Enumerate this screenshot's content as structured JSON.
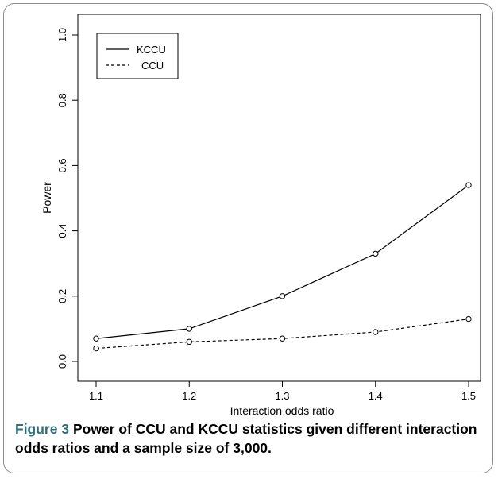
{
  "chart_data": {
    "type": "line",
    "x": [
      1.1,
      1.2,
      1.3,
      1.4,
      1.5
    ],
    "series": [
      {
        "name": "KCCU",
        "values": [
          0.07,
          0.1,
          0.2,
          0.33,
          0.54
        ],
        "line_style": "solid"
      },
      {
        "name": "CCU",
        "values": [
          0.04,
          0.06,
          0.07,
          0.09,
          0.13
        ],
        "line_style": "dashed"
      }
    ],
    "xlabel": "Interaction odds ratio",
    "ylabel": "Power",
    "xlim": [
      1.1,
      1.5
    ],
    "ylim": [
      0.0,
      1.0
    ],
    "x_ticks": [
      "1.1",
      "1.2",
      "1.3",
      "1.4",
      "1.5"
    ],
    "y_ticks": [
      "0.0",
      "0.2",
      "0.4",
      "0.6",
      "0.8",
      "1.0"
    ],
    "legend_position": "top-left",
    "grid": false,
    "marker": "open-circle",
    "line_color": "#000000"
  },
  "caption": {
    "label": "Figure 3",
    "text": "Power of CCU and KCCU statistics given different interaction odds ratios and a sample size of 3,000."
  }
}
